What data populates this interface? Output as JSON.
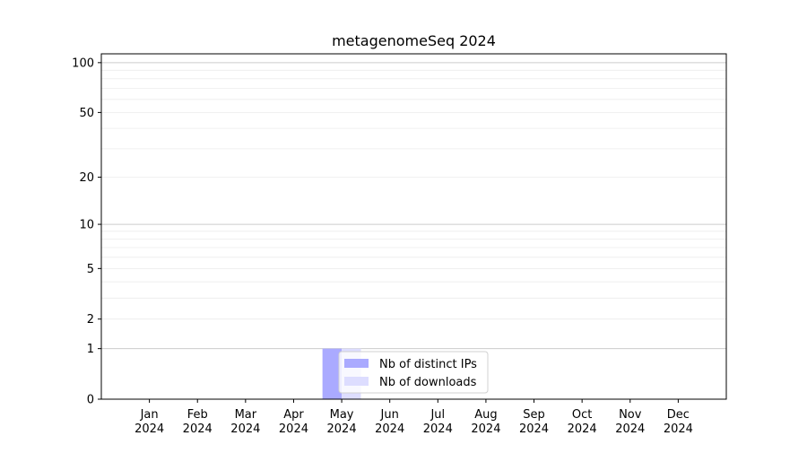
{
  "chart_data": {
    "type": "bar",
    "title": "metagenomeSeq 2024",
    "xlabel": "",
    "ylabel": "",
    "yscale": "symlog (log of 1+y)",
    "ylim": [
      0,
      113
    ],
    "yticks": [
      0,
      1,
      2,
      5,
      10,
      20,
      50,
      100
    ],
    "grid": true,
    "legend_position": "bottom-center",
    "categories": [
      "Jan\n2024",
      "Feb\n2024",
      "Mar\n2024",
      "Apr\n2024",
      "May\n2024",
      "Jun\n2024",
      "Jul\n2024",
      "Aug\n2024",
      "Sep\n2024",
      "Oct\n2024",
      "Nov\n2024",
      "Dec\n2024"
    ],
    "series": [
      {
        "name": "Nb of distinct IPs",
        "color": "#aaaaff",
        "values": [
          0,
          0,
          0,
          0,
          1,
          0,
          0,
          0,
          0,
          0,
          0,
          0
        ]
      },
      {
        "name": "Nb of downloads",
        "color": "#ddddff",
        "values": [
          0,
          0,
          0,
          0,
          1,
          0,
          0,
          0,
          0,
          0,
          0,
          0
        ]
      }
    ]
  }
}
